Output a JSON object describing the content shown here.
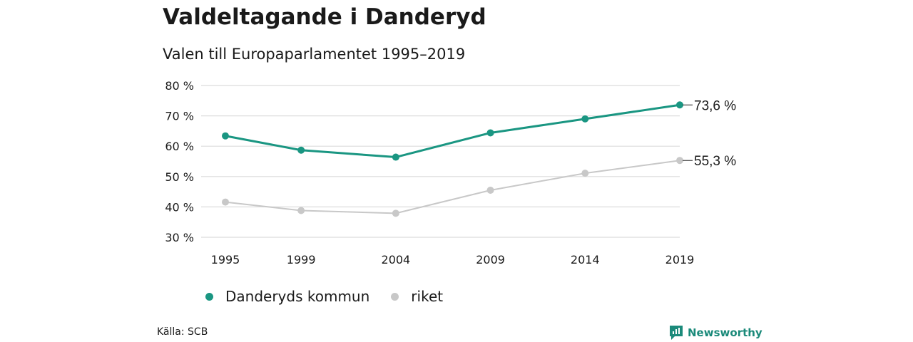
{
  "title": "Valdeltagande i Danderyd",
  "subtitle": "Valen till Europaparlamentet 1995–2019",
  "source": "Källa: SCB",
  "brand": "Newsworthy",
  "colors": {
    "danderyd": "#1a9682",
    "riket": "#c8c8c8",
    "grid": "#dcdcdc",
    "brand": "#1b8a7a"
  },
  "chart_data": {
    "type": "line",
    "x": [
      "1995",
      "1999",
      "2004",
      "2009",
      "2014",
      "2019"
    ],
    "x_values": [
      1995,
      1999,
      2004,
      2009,
      2014,
      2019
    ],
    "ylim": [
      30,
      80
    ],
    "yticks": [
      "30 %",
      "40 %",
      "50 %",
      "60 %",
      "70 %",
      "80 %"
    ],
    "ytick_values": [
      30,
      40,
      50,
      60,
      70,
      80
    ],
    "grid": true,
    "legend_position": "bottom-left",
    "series": [
      {
        "name": "Danderyds kommun",
        "values": [
          63.4,
          58.7,
          56.4,
          64.4,
          69.0,
          73.6
        ],
        "end_label": "73,6 %"
      },
      {
        "name": "riket",
        "values": [
          41.6,
          38.8,
          37.9,
          45.5,
          51.1,
          55.3
        ],
        "end_label": "55,3 %"
      }
    ]
  }
}
